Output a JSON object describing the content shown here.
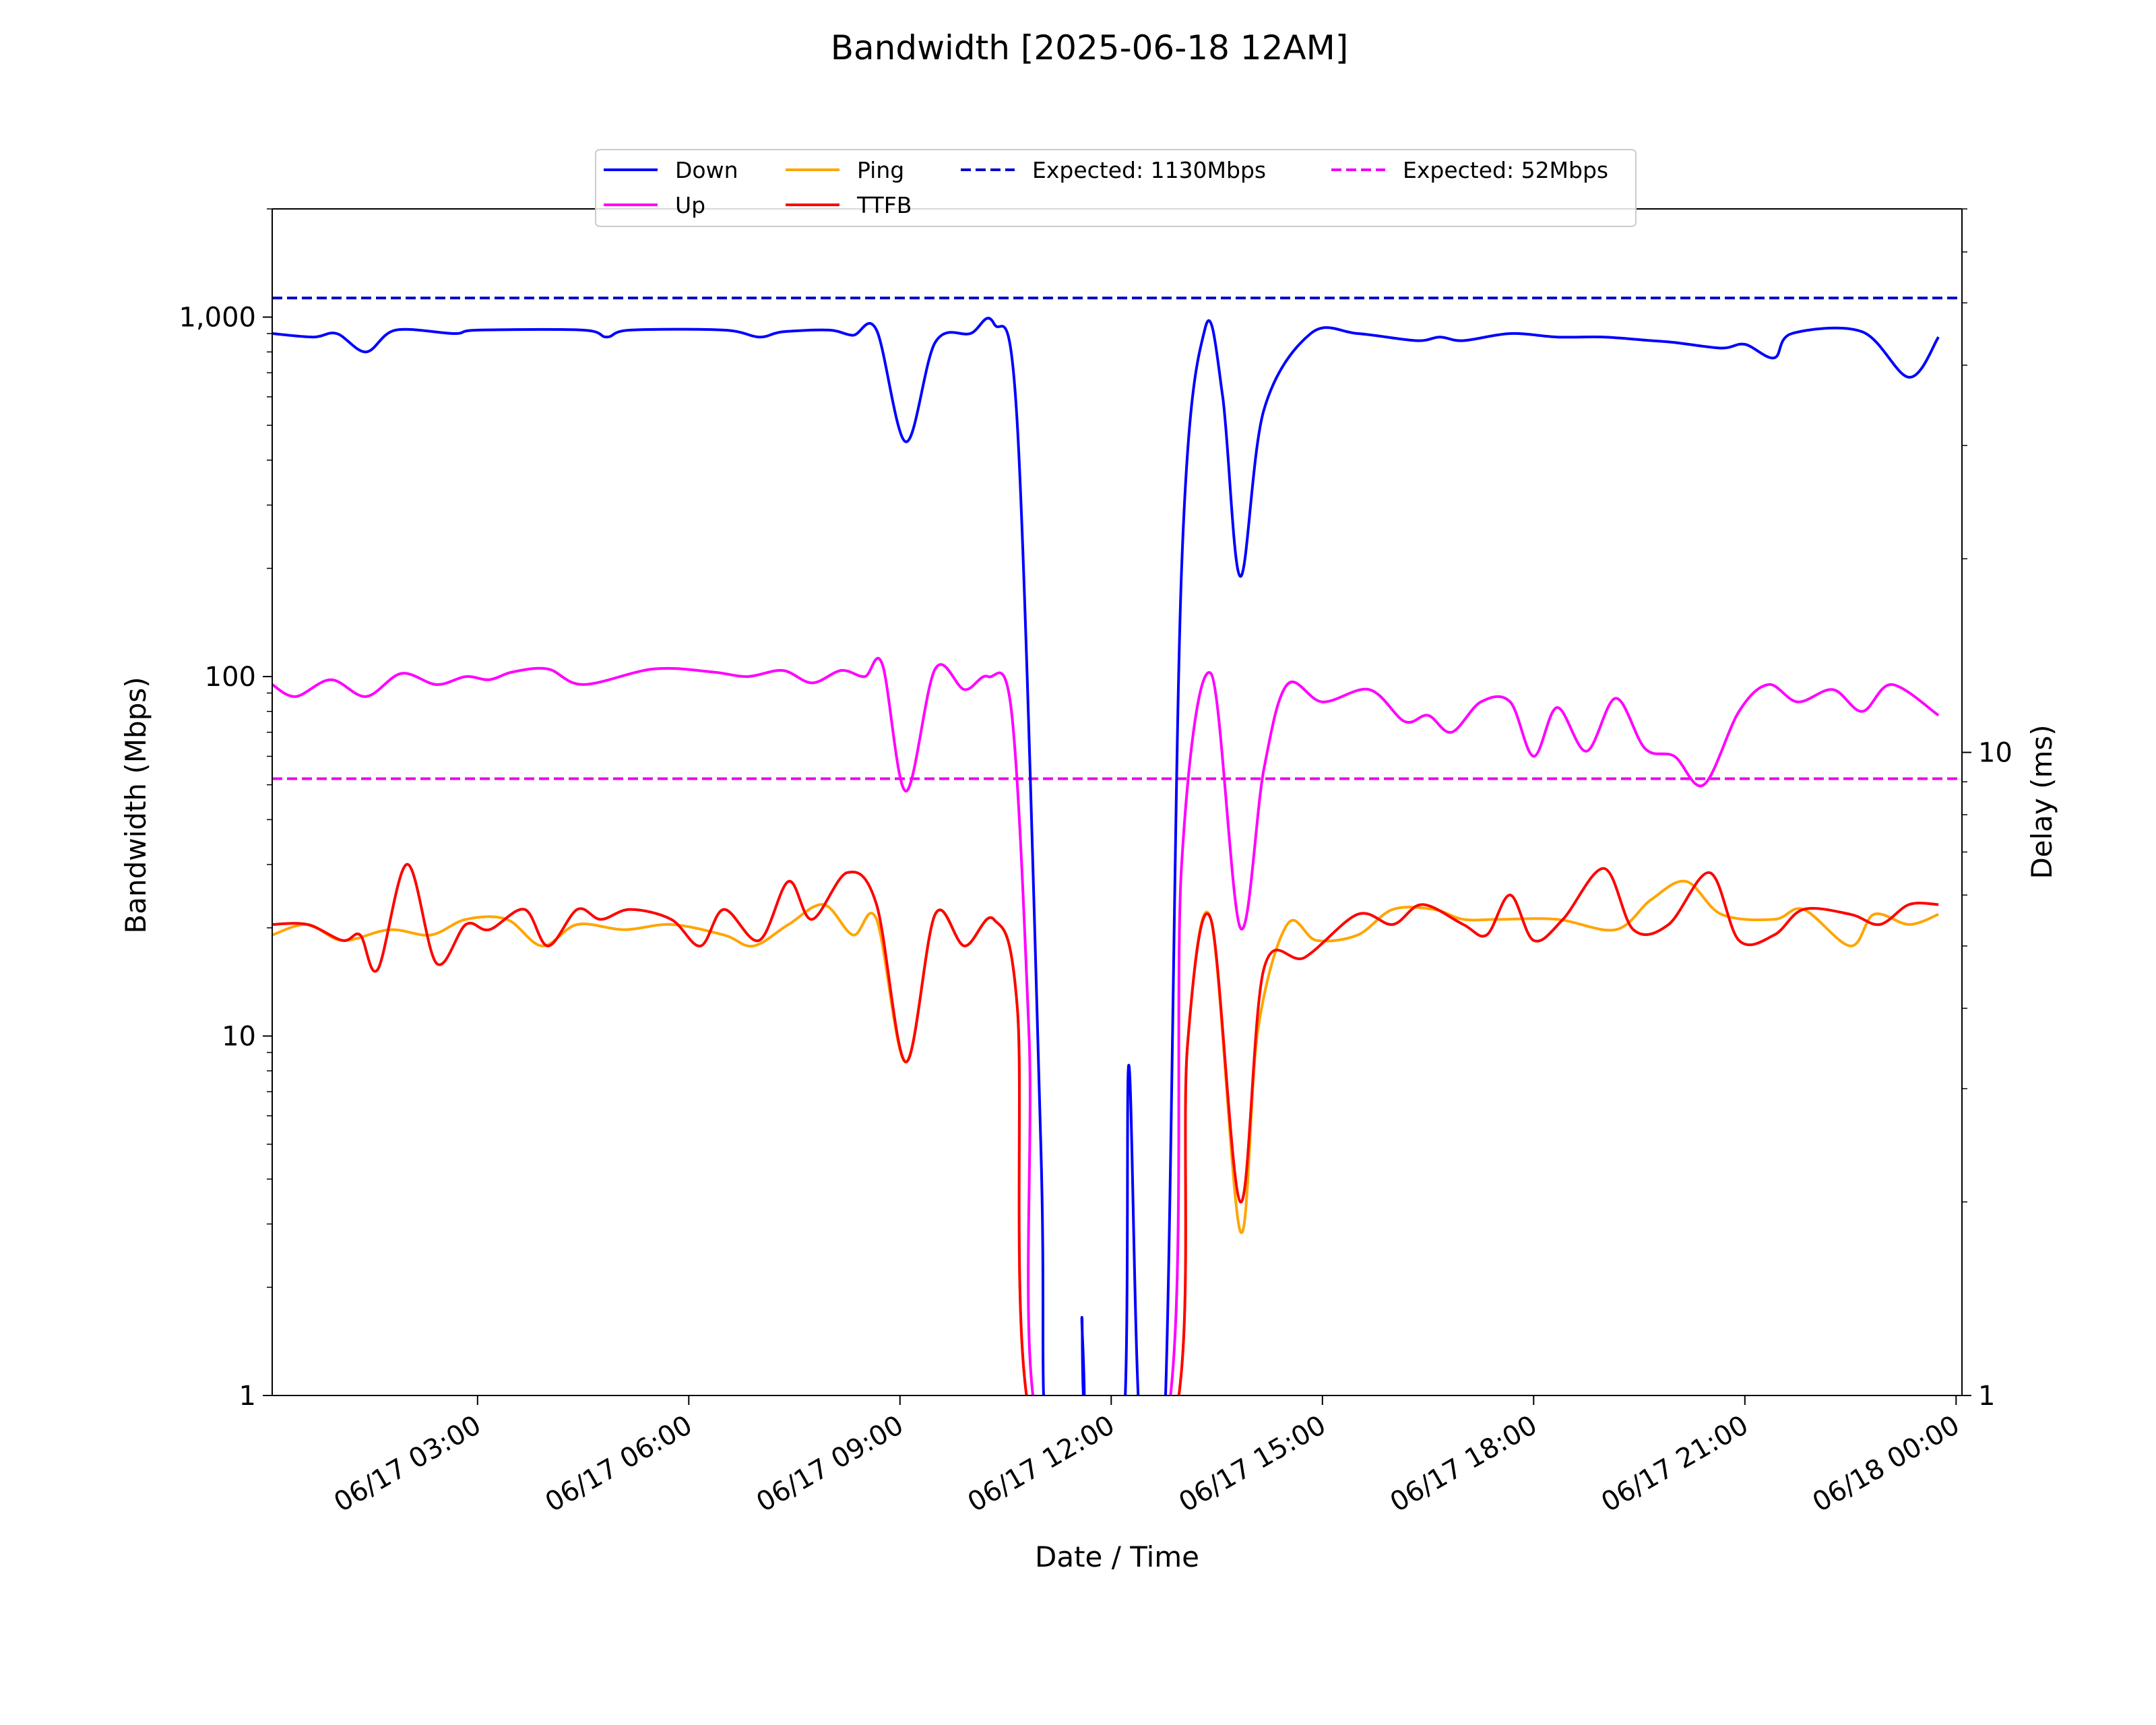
{
  "chart_data": {
    "type": "line",
    "title": "Bandwidth [2025-06-18 12AM]",
    "xlabel": "Date / Time",
    "ylabel": "Bandwidth (Mbps)",
    "y2label": "Delay (ms)",
    "y_scale": "log",
    "y2_scale": "log",
    "ylim": [
      1,
      2000
    ],
    "y2lim": [
      1,
      70
    ],
    "xlim": [
      "2025-06-17 00:05",
      "2025-06-18 00:05"
    ],
    "y_ticks": [
      {
        "value": 1,
        "label": "1"
      },
      {
        "value": 10,
        "label": "10"
      },
      {
        "value": 100,
        "label": "100"
      },
      {
        "value": 1000,
        "label": "1,000"
      }
    ],
    "y2_ticks": [
      {
        "value": 1,
        "label": "1"
      },
      {
        "value": 10,
        "label": "10"
      }
    ],
    "x_ticks": [
      {
        "value": "2025-06-17 03:00",
        "label": "06/17 03:00"
      },
      {
        "value": "2025-06-17 06:00",
        "label": "06/17 06:00"
      },
      {
        "value": "2025-06-17 09:00",
        "label": "06/17 09:00"
      },
      {
        "value": "2025-06-17 12:00",
        "label": "06/17 12:00"
      },
      {
        "value": "2025-06-17 15:00",
        "label": "06/17 15:00"
      },
      {
        "value": "2025-06-17 18:00",
        "label": "06/17 18:00"
      },
      {
        "value": "2025-06-17 21:00",
        "label": "06/17 21:00"
      },
      {
        "value": "2025-06-18 00:00",
        "label": "06/18 00:00"
      }
    ],
    "grid": false,
    "legend_position": "top",
    "series": [
      {
        "name": "Down",
        "axis": "left",
        "color": "#0000ff",
        "style": "solid",
        "points": [
          [
            "2025-06-17 00:05",
            900
          ],
          [
            "2025-06-17 00:40",
            880
          ],
          [
            "2025-06-17 01:00",
            900
          ],
          [
            "2025-06-17 01:25",
            800
          ],
          [
            "2025-06-17 01:50",
            920
          ],
          [
            "2025-06-17 02:40",
            900
          ],
          [
            "2025-06-17 03:00",
            920
          ],
          [
            "2025-06-17 04:30",
            920
          ],
          [
            "2025-06-17 04:50",
            880
          ],
          [
            "2025-06-17 05:10",
            920
          ],
          [
            "2025-06-17 06:30",
            920
          ],
          [
            "2025-06-17 07:00",
            880
          ],
          [
            "2025-06-17 07:20",
            910
          ],
          [
            "2025-06-17 08:00",
            920
          ],
          [
            "2025-06-17 08:20",
            890
          ],
          [
            "2025-06-17 08:40",
            920
          ],
          [
            "2025-06-17 09:05",
            450
          ],
          [
            "2025-06-17 09:30",
            850
          ],
          [
            "2025-06-17 10:00",
            900
          ],
          [
            "2025-06-17 10:20",
            960
          ],
          [
            "2025-06-17 10:40",
            500
          ],
          [
            "2025-06-17 11:00",
            5
          ],
          [
            "2025-06-17 11:05",
            1
          ],
          [
            "2025-06-17 11:35",
            1
          ],
          [
            "2025-06-17 11:35",
            1.65
          ],
          [
            "2025-06-17 11:40",
            1
          ],
          [
            "2025-06-17 12:10",
            1
          ],
          [
            "2025-06-17 12:15",
            8.3
          ],
          [
            "2025-06-17 12:25",
            1
          ],
          [
            "2025-06-17 12:45",
            1
          ],
          [
            "2025-06-17 13:00",
            200
          ],
          [
            "2025-06-17 13:20",
            930
          ],
          [
            "2025-06-17 13:35",
            600
          ],
          [
            "2025-06-17 13:50",
            190
          ],
          [
            "2025-06-17 14:10",
            550
          ],
          [
            "2025-06-17 14:50",
            900
          ],
          [
            "2025-06-17 15:30",
            900
          ],
          [
            "2025-06-17 16:20",
            860
          ],
          [
            "2025-06-17 16:40",
            880
          ],
          [
            "2025-06-17 17:00",
            860
          ],
          [
            "2025-06-17 17:40",
            900
          ],
          [
            "2025-06-17 18:20",
            880
          ],
          [
            "2025-06-17 19:00",
            880
          ],
          [
            "2025-06-17 19:40",
            860
          ],
          [
            "2025-06-17 20:00",
            850
          ],
          [
            "2025-06-17 20:40",
            820
          ],
          [
            "2025-06-17 21:00",
            840
          ],
          [
            "2025-06-17 21:25",
            770
          ],
          [
            "2025-06-17 21:40",
            900
          ],
          [
            "2025-06-17 22:40",
            910
          ],
          [
            "2025-06-17 23:20",
            680
          ],
          [
            "2025-06-17 23:45",
            880
          ]
        ]
      },
      {
        "name": "Up",
        "axis": "left",
        "color": "#ff00ff",
        "style": "solid",
        "points": [
          [
            "2025-06-17 00:05",
            95
          ],
          [
            "2025-06-17 00:25",
            88
          ],
          [
            "2025-06-17 00:55",
            98
          ],
          [
            "2025-06-17 01:25",
            88
          ],
          [
            "2025-06-17 01:55",
            102
          ],
          [
            "2025-06-17 02:25",
            95
          ],
          [
            "2025-06-17 02:50",
            100
          ],
          [
            "2025-06-17 03:10",
            98
          ],
          [
            "2025-06-17 03:30",
            103
          ],
          [
            "2025-06-17 04:00",
            105
          ],
          [
            "2025-06-17 04:30",
            95
          ],
          [
            "2025-06-17 05:30",
            105
          ],
          [
            "2025-06-17 06:20",
            103
          ],
          [
            "2025-06-17 06:50",
            100
          ],
          [
            "2025-06-17 07:20",
            104
          ],
          [
            "2025-06-17 07:45",
            96
          ],
          [
            "2025-06-17 08:10",
            104
          ],
          [
            "2025-06-17 08:30",
            100
          ],
          [
            "2025-06-17 08:45",
            108
          ],
          [
            "2025-06-17 09:05",
            48
          ],
          [
            "2025-06-17 09:30",
            105
          ],
          [
            "2025-06-17 09:55",
            92
          ],
          [
            "2025-06-17 10:15",
            100
          ],
          [
            "2025-06-17 10:35",
            80
          ],
          [
            "2025-06-17 10:50",
            10
          ],
          [
            "2025-06-17 11:00",
            1
          ],
          [
            "2025-06-17 12:45",
            1
          ],
          [
            "2025-06-17 13:00",
            30
          ],
          [
            "2025-06-17 13:25",
            102
          ],
          [
            "2025-06-17 13:50",
            20
          ],
          [
            "2025-06-17 14:10",
            55
          ],
          [
            "2025-06-17 14:30",
            95
          ],
          [
            "2025-06-17 15:00",
            85
          ],
          [
            "2025-06-17 15:40",
            92
          ],
          [
            "2025-06-17 16:10",
            75
          ],
          [
            "2025-06-17 16:30",
            78
          ],
          [
            "2025-06-17 16:50",
            70
          ],
          [
            "2025-06-17 17:15",
            85
          ],
          [
            "2025-06-17 17:40",
            85
          ],
          [
            "2025-06-17 18:00",
            60
          ],
          [
            "2025-06-17 18:20",
            82
          ],
          [
            "2025-06-17 18:45",
            62
          ],
          [
            "2025-06-17 19:10",
            87
          ],
          [
            "2025-06-17 19:35",
            63
          ],
          [
            "2025-06-17 20:00",
            60
          ],
          [
            "2025-06-17 20:25",
            50
          ],
          [
            "2025-06-17 20:55",
            80
          ],
          [
            "2025-06-17 21:20",
            95
          ],
          [
            "2025-06-17 21:45",
            85
          ],
          [
            "2025-06-17 22:15",
            92
          ],
          [
            "2025-06-17 22:40",
            80
          ],
          [
            "2025-06-17 23:05",
            95
          ],
          [
            "2025-06-17 23:45",
            78
          ]
        ]
      },
      {
        "name": "Ping",
        "axis": "right",
        "color": "#ffa500",
        "style": "solid",
        "points": [
          [
            "2025-06-17 00:05",
            5.2
          ],
          [
            "2025-06-17 00:35",
            5.4
          ],
          [
            "2025-06-17 01:05",
            5.1
          ],
          [
            "2025-06-17 01:45",
            5.3
          ],
          [
            "2025-06-17 02:20",
            5.2
          ],
          [
            "2025-06-17 02:50",
            5.5
          ],
          [
            "2025-06-17 03:25",
            5.5
          ],
          [
            "2025-06-17 03:55",
            5.0
          ],
          [
            "2025-06-17 04:25",
            5.4
          ],
          [
            "2025-06-17 05:05",
            5.3
          ],
          [
            "2025-06-17 05:45",
            5.4
          ],
          [
            "2025-06-17 06:30",
            5.2
          ],
          [
            "2025-06-17 06:55",
            5.0
          ],
          [
            "2025-06-17 07:25",
            5.4
          ],
          [
            "2025-06-17 07:55",
            5.8
          ],
          [
            "2025-06-17 08:20",
            5.2
          ],
          [
            "2025-06-17 08:40",
            5.5
          ],
          [
            "2025-06-17 09:05",
            3.3
          ],
          [
            "2025-06-17 09:30",
            5.6
          ],
          [
            "2025-06-17 09:55",
            5.0
          ],
          [
            "2025-06-17 10:20",
            5.5
          ],
          [
            "2025-06-17 10:40",
            4.0
          ],
          [
            "2025-06-17 10:55",
            1.0
          ],
          [
            "2025-06-17 12:50",
            1.0
          ],
          [
            "2025-06-17 13:05",
            3.5
          ],
          [
            "2025-06-17 13:25",
            5.5
          ],
          [
            "2025-06-17 13:50",
            1.8
          ],
          [
            "2025-06-17 14:05",
            3.7
          ],
          [
            "2025-06-17 14:30",
            5.4
          ],
          [
            "2025-06-17 14:55",
            5.1
          ],
          [
            "2025-06-17 15:30",
            5.2
          ],
          [
            "2025-06-17 16:00",
            5.7
          ],
          [
            "2025-06-17 16:35",
            5.7
          ],
          [
            "2025-06-17 17:00",
            5.5
          ],
          [
            "2025-06-17 17:30",
            5.5
          ],
          [
            "2025-06-17 18:20",
            5.5
          ],
          [
            "2025-06-17 19:10",
            5.3
          ],
          [
            "2025-06-17 19:40",
            5.9
          ],
          [
            "2025-06-17 20:10",
            6.3
          ],
          [
            "2025-06-17 20:40",
            5.6
          ],
          [
            "2025-06-17 21:25",
            5.5
          ],
          [
            "2025-06-17 21:50",
            5.7
          ],
          [
            "2025-06-17 22:30",
            5.0
          ],
          [
            "2025-06-17 22:50",
            5.6
          ],
          [
            "2025-06-17 23:20",
            5.4
          ],
          [
            "2025-06-17 23:45",
            5.6
          ]
        ]
      },
      {
        "name": "TTFB",
        "axis": "right",
        "color": "#ff0000",
        "style": "solid",
        "points": [
          [
            "2025-06-17 00:05",
            5.4
          ],
          [
            "2025-06-17 00:35",
            5.4
          ],
          [
            "2025-06-17 01:05",
            5.1
          ],
          [
            "2025-06-17 01:20",
            5.2
          ],
          [
            "2025-06-17 01:35",
            4.6
          ],
          [
            "2025-06-17 02:00",
            6.7
          ],
          [
            "2025-06-17 02:25",
            4.7
          ],
          [
            "2025-06-17 02:50",
            5.4
          ],
          [
            "2025-06-17 03:10",
            5.3
          ],
          [
            "2025-06-17 03:40",
            5.7
          ],
          [
            "2025-06-17 04:00",
            5.0
          ],
          [
            "2025-06-17 04:25",
            5.7
          ],
          [
            "2025-06-17 04:45",
            5.5
          ],
          [
            "2025-06-17 05:10",
            5.7
          ],
          [
            "2025-06-17 05:45",
            5.5
          ],
          [
            "2025-06-17 06:10",
            5.0
          ],
          [
            "2025-06-17 06:30",
            5.7
          ],
          [
            "2025-06-17 07:00",
            5.1
          ],
          [
            "2025-06-17 07:25",
            6.3
          ],
          [
            "2025-06-17 07:45",
            5.5
          ],
          [
            "2025-06-17 08:15",
            6.5
          ],
          [
            "2025-06-17 08:40",
            5.8
          ],
          [
            "2025-06-17 09:05",
            3.3
          ],
          [
            "2025-06-17 09:30",
            5.6
          ],
          [
            "2025-06-17 09:55",
            5.0
          ],
          [
            "2025-06-17 10:20",
            5.5
          ],
          [
            "2025-06-17 10:40",
            4.0
          ],
          [
            "2025-06-17 10:55",
            1.0
          ],
          [
            "2025-06-17 12:50",
            1.0
          ],
          [
            "2025-06-17 13:05",
            3.5
          ],
          [
            "2025-06-17 13:25",
            5.5
          ],
          [
            "2025-06-17 13:50",
            2.0
          ],
          [
            "2025-06-17 14:10",
            4.6
          ],
          [
            "2025-06-17 14:45",
            4.8
          ],
          [
            "2025-06-17 15:30",
            5.6
          ],
          [
            "2025-06-17 16:00",
            5.4
          ],
          [
            "2025-06-17 16:25",
            5.8
          ],
          [
            "2025-06-17 17:00",
            5.4
          ],
          [
            "2025-06-17 17:20",
            5.2
          ],
          [
            "2025-06-17 17:40",
            6.0
          ],
          [
            "2025-06-17 18:00",
            5.1
          ],
          [
            "2025-06-17 18:25",
            5.5
          ],
          [
            "2025-06-17 19:00",
            6.6
          ],
          [
            "2025-06-17 19:25",
            5.3
          ],
          [
            "2025-06-17 19:55",
            5.4
          ],
          [
            "2025-06-17 20:30",
            6.5
          ],
          [
            "2025-06-17 20:55",
            5.1
          ],
          [
            "2025-06-17 21:25",
            5.2
          ],
          [
            "2025-06-17 21:50",
            5.7
          ],
          [
            "2025-06-17 22:30",
            5.6
          ],
          [
            "2025-06-17 22:55",
            5.4
          ],
          [
            "2025-06-17 23:20",
            5.8
          ],
          [
            "2025-06-17 23:45",
            5.8
          ]
        ]
      },
      {
        "name": "Expected: 1130Mbps",
        "axis": "left",
        "color": "#0000cc",
        "style": "dashed",
        "points": [
          [
            "2025-06-17 00:05",
            1130
          ],
          [
            "2025-06-18 00:05",
            1130
          ]
        ]
      },
      {
        "name": "Expected: 52Mbps",
        "axis": "left",
        "color": "#ee00ee",
        "style": "dashed",
        "points": [
          [
            "2025-06-17 00:05",
            52
          ],
          [
            "2025-06-18 00:05",
            52
          ]
        ]
      }
    ],
    "legend": [
      {
        "label": "Down",
        "color": "#0000ff",
        "style": "solid"
      },
      {
        "label": "Up",
        "color": "#ff00ff",
        "style": "solid"
      },
      {
        "label": "Ping",
        "color": "#ffa500",
        "style": "solid"
      },
      {
        "label": "TTFB",
        "color": "#ff0000",
        "style": "solid"
      },
      {
        "label": "Expected: 1130Mbps",
        "color": "#0000cc",
        "style": "dashed"
      },
      {
        "label": "Expected: 52Mbps",
        "color": "#ee00ee",
        "style": "dashed"
      }
    ]
  }
}
